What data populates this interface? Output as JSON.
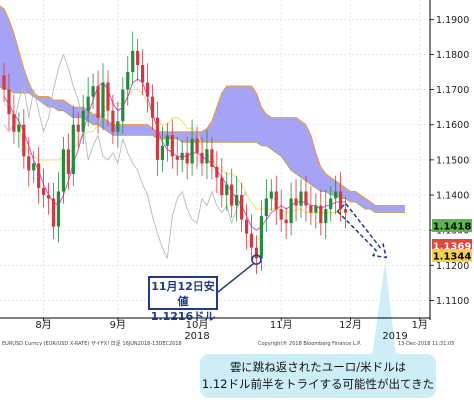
{
  "chart_data": {
    "type": "line",
    "title": "",
    "y_ticks": [
      "1.1900",
      "1.1800",
      "1.1700",
      "1.1600",
      "1.1500",
      "1.1400",
      "1.1300",
      "1.1200",
      "1.1100"
    ],
    "x_tick_labels": [
      "8月",
      "9月",
      "10月",
      "11月",
      "12月",
      "1月"
    ],
    "year_labels": [
      "2018",
      "2019"
    ],
    "ylim": [
      1.105,
      1.1955
    ],
    "price_tags": [
      {
        "label": "1.1418",
        "value": 1.1418,
        "color": "#58b84a",
        "text_color": "#000000"
      },
      {
        "label": "1.1369",
        "value": 1.1369,
        "color": "#e8433c",
        "text_color": "#ffffff"
      },
      {
        "label": "1.1344",
        "value": 1.1344,
        "color": "#f4d24a",
        "text_color": "#000000"
      }
    ],
    "series": [
      {
        "role": "price_close",
        "color": "#2f62b4",
        "values": [
          1.17,
          1.163,
          1.158,
          1.16,
          1.151,
          1.147,
          1.149,
          1.142,
          1.14,
          1.139,
          1.131,
          1.141,
          1.153,
          1.146,
          1.16,
          1.158,
          1.164,
          1.168,
          1.171,
          1.162,
          1.172,
          1.164,
          1.158,
          1.161,
          1.17,
          1.175,
          1.181,
          1.177,
          1.172,
          1.168,
          1.162,
          1.15,
          1.154,
          1.157,
          1.151,
          1.15,
          1.152,
          1.149,
          1.156,
          1.152,
          1.149,
          1.153,
          1.148,
          1.145,
          1.14,
          1.143,
          1.137,
          1.14,
          1.133,
          1.129,
          1.125,
          1.122,
          1.134,
          1.139,
          1.141,
          1.136,
          1.133,
          1.132,
          1.139,
          1.137,
          1.141,
          1.137,
          1.135,
          1.137,
          1.132,
          1.136,
          1.139,
          1.141,
          1.136,
          1.135
        ]
      },
      {
        "role": "tenkan",
        "color": "#e24ad4",
        "values": [
          1.168,
          1.166,
          1.163,
          1.161,
          1.158,
          1.154,
          1.15,
          1.147,
          1.143,
          1.14,
          1.138,
          1.137,
          1.14,
          1.144,
          1.149,
          1.153,
          1.158,
          1.163,
          1.167,
          1.171,
          1.172,
          1.17,
          1.166,
          1.164,
          1.165,
          1.168,
          1.172,
          1.173,
          1.172,
          1.168,
          1.163,
          1.159,
          1.155,
          1.153,
          1.152,
          1.151,
          1.151,
          1.151,
          1.152,
          1.152,
          1.151,
          1.15,
          1.149,
          1.147,
          1.145,
          1.143,
          1.141,
          1.139,
          1.137,
          1.134,
          1.131,
          1.13,
          1.131,
          1.133,
          1.135,
          1.136,
          1.137,
          1.136,
          1.137,
          1.138,
          1.138,
          1.138,
          1.137,
          1.137,
          1.136,
          1.137,
          1.137,
          1.138,
          1.138,
          1.138
        ]
      },
      {
        "role": "kijun",
        "color": "#f3e05a",
        "values": [
          1.166,
          1.165,
          1.162,
          1.159,
          1.155,
          1.152,
          1.151,
          1.15,
          1.15,
          1.15,
          1.15,
          1.15,
          1.151,
          1.152,
          1.153,
          1.155,
          1.157,
          1.158,
          1.158,
          1.16,
          1.164,
          1.166,
          1.166,
          1.166,
          1.166,
          1.168,
          1.17,
          1.17,
          1.169,
          1.166,
          1.163,
          1.161,
          1.16,
          1.16,
          1.162,
          1.162,
          1.161,
          1.159,
          1.159,
          1.158,
          1.154,
          1.152,
          1.15,
          1.148,
          1.147,
          1.146,
          1.146,
          1.145,
          1.143,
          1.14,
          1.138,
          1.136,
          1.136,
          1.136,
          1.136,
          1.136,
          1.136,
          1.135,
          1.135,
          1.136,
          1.136,
          1.135,
          1.135,
          1.135,
          1.135,
          1.135,
          1.135,
          1.135,
          1.135,
          1.135
        ]
      },
      {
        "role": "chikou",
        "color": "#b9b9b9",
        "values": [
          1.16,
          1.158,
          1.16,
          1.167,
          1.171,
          1.162,
          1.17,
          1.164,
          1.158,
          1.162,
          1.17,
          1.176,
          1.18,
          1.176,
          1.171,
          1.167,
          1.16,
          1.15,
          1.154,
          1.157,
          1.151,
          1.15,
          1.152,
          1.149,
          1.156,
          1.152,
          1.149,
          1.147,
          1.143,
          1.14,
          1.134,
          1.129,
          1.125,
          1.122,
          1.134,
          1.139,
          1.141,
          1.136,
          1.133,
          1.132,
          1.139,
          1.137,
          1.141,
          1.137,
          1.135,
          1.137,
          1.132,
          1.136,
          1.139,
          1.141
        ]
      },
      {
        "role": "cloud_upper",
        "color": "#f29a3a",
        "values": [
          1.195,
          1.194,
          1.193,
          1.19,
          1.186,
          1.181,
          1.176,
          1.172,
          1.169,
          1.168,
          1.168,
          1.168,
          1.167,
          1.167,
          1.167,
          1.166,
          1.165,
          1.165,
          1.165,
          1.164,
          1.163,
          1.163,
          1.162,
          1.161,
          1.16,
          1.16,
          1.16,
          1.16,
          1.16,
          1.16,
          1.16,
          1.16,
          1.159,
          1.158,
          1.158,
          1.158,
          1.158,
          1.158,
          1.158,
          1.158,
          1.158,
          1.158,
          1.158,
          1.159,
          1.161,
          1.165,
          1.169,
          1.171,
          1.171,
          1.171,
          1.171,
          1.171,
          1.171,
          1.169,
          1.165,
          1.163,
          1.162,
          1.162,
          1.162,
          1.162,
          1.162,
          1.162,
          1.161,
          1.16,
          1.157,
          1.152,
          1.148,
          1.146,
          1.145,
          1.144,
          1.143,
          1.142,
          1.141,
          1.141,
          1.14,
          1.139,
          1.138,
          1.137,
          1.137,
          1.137,
          1.137,
          1.137,
          1.137,
          1.137
        ]
      },
      {
        "role": "cloud_lower",
        "color": "#b8a64c",
        "values": [
          1.172,
          1.171,
          1.17,
          1.17,
          1.169,
          1.169,
          1.169,
          1.169,
          1.168,
          1.167,
          1.166,
          1.165,
          1.165,
          1.164,
          1.164,
          1.163,
          1.162,
          1.162,
          1.162,
          1.161,
          1.16,
          1.16,
          1.159,
          1.158,
          1.157,
          1.157,
          1.157,
          1.157,
          1.157,
          1.157,
          1.157,
          1.157,
          1.157,
          1.156,
          1.156,
          1.156,
          1.156,
          1.156,
          1.155,
          1.155,
          1.155,
          1.155,
          1.155,
          1.155,
          1.155,
          1.155,
          1.155,
          1.155,
          1.155,
          1.155,
          1.155,
          1.155,
          1.155,
          1.155,
          1.154,
          1.154,
          1.153,
          1.152,
          1.151,
          1.149,
          1.147,
          1.146,
          1.145,
          1.144,
          1.143,
          1.142,
          1.141,
          1.141,
          1.14,
          1.14,
          1.139,
          1.139,
          1.138,
          1.138,
          1.137,
          1.136,
          1.136,
          1.135,
          1.135,
          1.135,
          1.135,
          1.135,
          1.135,
          1.135
        ]
      }
    ],
    "low_marker": {
      "value": 1.1216
    },
    "forecast_arrow": {
      "from": 1.1345,
      "to": 1.1225
    },
    "callout": {
      "line1": "11月12日安値",
      "line2": "1.1216ドル"
    },
    "note": {
      "line1": "雲に跳ね返されたユーロ/米ドルは",
      "line2": "1.12ドル前半をトライする可能性が出てきた"
    },
    "footer_left": "EURUSD Curncy (EUR/USD X-RATE) ザイFX! 日足 16JUN2018-13DEC2018",
    "footer_right": "Copyright® 2018 Bloomberg Finance L.P.",
    "footer_date": "13-Dec-2018 11:31:05",
    "colors": {
      "cloud": "#9f9ef4",
      "grid": "#d8d8d8",
      "axis": "#000000",
      "callout_border": "#1f3b8a",
      "note_bg": "#cdeef7"
    }
  }
}
